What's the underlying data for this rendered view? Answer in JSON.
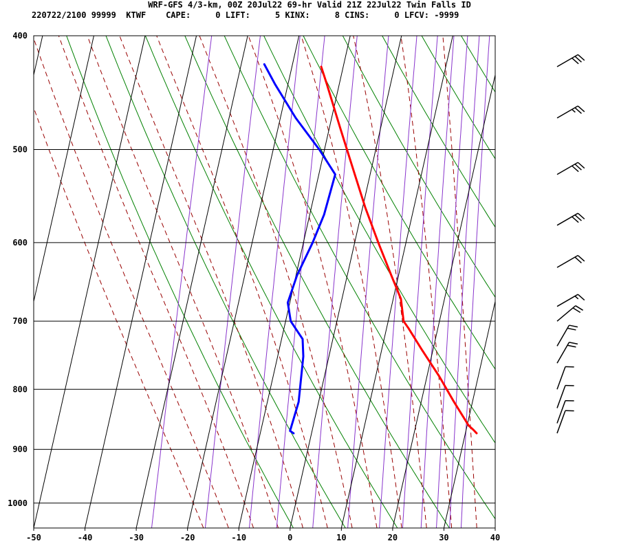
{
  "header": {
    "line1": "WRF-GFS 4/3-km, 00Z 20Jul22 69-hr Valid 21Z 22Jul22 Twin Falls ID",
    "line2": "220722/2100 99999  KTWF    CAPE:     0 LIFT:     5 KINX:     8 CINS:     0 LFCV: -9999"
  },
  "chart_data": {
    "type": "line",
    "title": "WRF-GFS 4/3-km, 00Z 20Jul22 69-hr Valid 21Z 22Jul22 Twin Falls ID",
    "subtitle": "220722/2100 99999  KTWF    CAPE:     0 LIFT:     5 KINX:     8 CINS:     0 LFCV: -9999",
    "xlabel": "",
    "ylabel": "",
    "xlim": [
      -50,
      40
    ],
    "ylim": [
      1050,
      400
    ],
    "y_scale": "log",
    "grid": true,
    "skew": true,
    "x_ticks": [
      -50,
      -40,
      -30,
      -20,
      -10,
      0,
      10,
      20,
      30,
      40
    ],
    "y_ticks": [
      400,
      500,
      600,
      700,
      800,
      900,
      1000
    ],
    "colors": {
      "temperature": "#ff0000",
      "dewpoint": "#0000ff",
      "dry_adiabat": "#008000",
      "moist_adiabat": "#990000",
      "mixing_ratio": "#8833cc",
      "grid": "#000000",
      "wind_barb": "#000000"
    },
    "series": [
      {
        "key": "temperature",
        "points": [
          {
            "p": 872,
            "t": 32.2
          },
          {
            "p": 866,
            "t": 31.4
          },
          {
            "p": 859,
            "t": 30.3
          },
          {
            "p": 820,
            "t": 26.4
          },
          {
            "p": 780,
            "t": 22.4
          },
          {
            "p": 740,
            "t": 17.8
          },
          {
            "p": 710,
            "t": 14.3
          },
          {
            "p": 700,
            "t": 13.0
          },
          {
            "p": 670,
            "t": 11.5
          },
          {
            "p": 640,
            "t": 8.6
          },
          {
            "p": 600,
            "t": 4.6
          },
          {
            "p": 560,
            "t": 0.5
          },
          {
            "p": 520,
            "t": -3.5
          },
          {
            "p": 480,
            "t": -7.8
          },
          {
            "p": 440,
            "t": -12.4
          },
          {
            "p": 425,
            "t": -14.3
          }
        ]
      },
      {
        "key": "dewpoint",
        "points": [
          {
            "p": 872,
            "t": -3.5
          },
          {
            "p": 868,
            "t": -4.3
          },
          {
            "p": 820,
            "t": -3.9
          },
          {
            "p": 750,
            "t": -5.0
          },
          {
            "p": 725,
            "t": -5.9
          },
          {
            "p": 700,
            "t": -9.0
          },
          {
            "p": 675,
            "t": -10.4
          },
          {
            "p": 640,
            "t": -9.8
          },
          {
            "p": 600,
            "t": -8.2
          },
          {
            "p": 568,
            "t": -7.2
          },
          {
            "p": 525,
            "t": -6.8
          },
          {
            "p": 500,
            "t": -11.0
          },
          {
            "p": 470,
            "t": -17.0
          },
          {
            "p": 440,
            "t": -22.5
          },
          {
            "p": 423,
            "t": -25.5
          }
        ]
      }
    ],
    "dry_adiabats_K": [
      270,
      280,
      290,
      300,
      310,
      320,
      330,
      340,
      350,
      360,
      370,
      380,
      390,
      400
    ],
    "moist_adiabats_C": [
      -20,
      -15,
      -10,
      -5,
      0,
      5,
      10,
      15,
      20,
      25,
      30,
      35
    ],
    "mixing_ratio_gkg": [
      0.4,
      1,
      2,
      3,
      5,
      8,
      12,
      16,
      20,
      24,
      28,
      32
    ],
    "wind_barbs": [
      {
        "p": 425,
        "direction": 240,
        "speed": 30
      },
      {
        "p": 470,
        "direction": 240,
        "speed": 25
      },
      {
        "p": 525,
        "direction": 240,
        "speed": 30
      },
      {
        "p": 580,
        "direction": 240,
        "speed": 30
      },
      {
        "p": 630,
        "direction": 240,
        "speed": 20
      },
      {
        "p": 680,
        "direction": 240,
        "speed": 15
      },
      {
        "p": 700,
        "direction": 230,
        "speed": 20
      },
      {
        "p": 735,
        "direction": 210,
        "speed": 20
      },
      {
        "p": 760,
        "direction": 210,
        "speed": 20
      },
      {
        "p": 800,
        "direction": 200,
        "speed": 10
      },
      {
        "p": 830,
        "direction": 200,
        "speed": 10
      },
      {
        "p": 855,
        "direction": 200,
        "speed": 10
      },
      {
        "p": 872,
        "direction": 200,
        "speed": 10
      }
    ]
  }
}
